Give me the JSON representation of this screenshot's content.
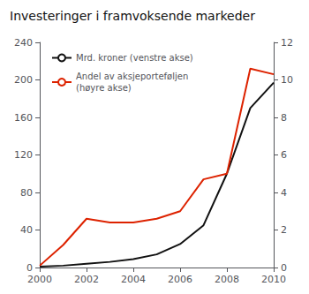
{
  "chart_data": {
    "type": "line",
    "title": "Investeringer i framvoksende markeder",
    "x": [
      2000,
      2001,
      2002,
      2003,
      2004,
      2005,
      2006,
      2007,
      2008,
      2009,
      2010
    ],
    "series": [
      {
        "name": "Mrd. kroner (venstre akse)",
        "color": "#111111",
        "values": [
          1,
          2,
          4,
          6,
          9,
          14,
          25,
          45,
          100,
          170,
          197
        ]
      },
      {
        "name": "Andel av aksjeporteføljen\n(høyre akse)",
        "color": "#dd2200",
        "axis": "y2",
        "values": [
          0.1,
          1.2,
          2.6,
          2.4,
          2.4,
          2.6,
          3.0,
          4.7,
          5.0,
          10.6,
          10.3
        ]
      }
    ],
    "xlim": [
      2000,
      2010
    ],
    "xticks": [
      2000,
      2002,
      2004,
      2006,
      2008,
      2010
    ],
    "ylim": [
      0,
      240
    ],
    "yticks": [
      0,
      40,
      80,
      120,
      160,
      200,
      240
    ],
    "y2lim": [
      0,
      12
    ],
    "y2ticks": [
      0,
      2,
      4,
      6,
      8,
      10,
      12
    ],
    "grid": false,
    "legend": "upper left"
  }
}
